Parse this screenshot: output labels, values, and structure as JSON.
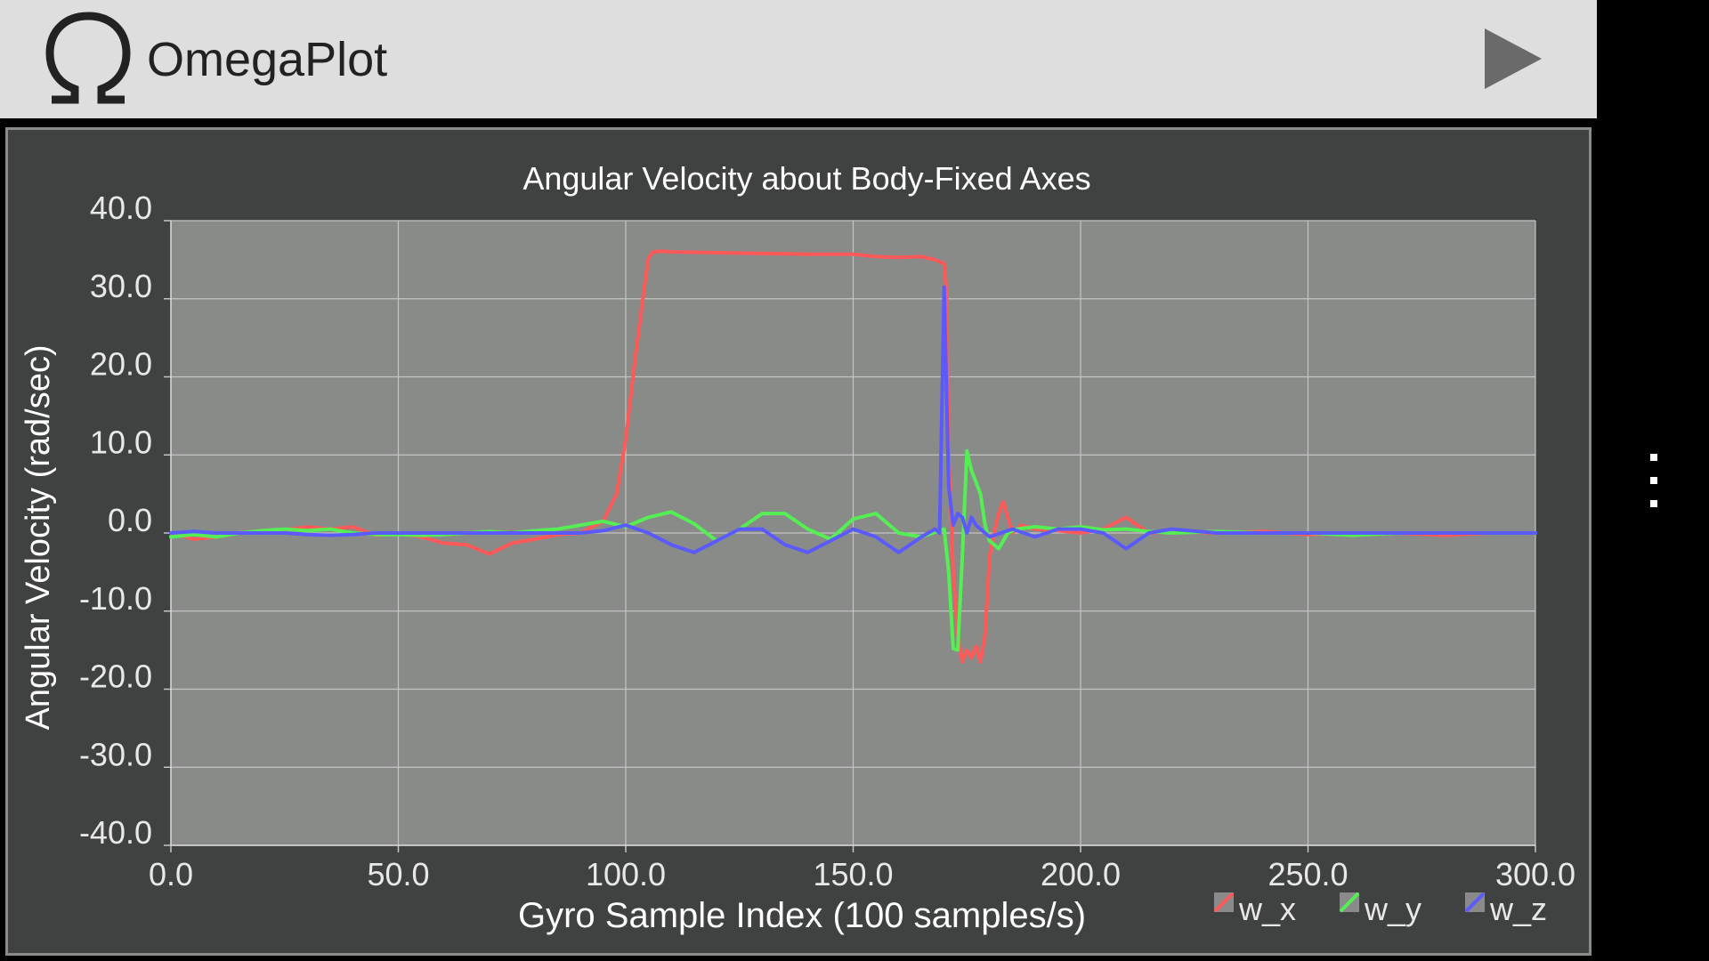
{
  "app": {
    "title": "OmegaPlot",
    "logo_icon": "omega-icon",
    "play_icon": "play-icon",
    "overflow_icon": "overflow-menu-icon"
  },
  "colors": {
    "actionbar_bg": "#dedede",
    "panel_bg": "#404242",
    "plot_bg": "#898b89",
    "grid": "#c4c4c4",
    "w_x": "#ff5a5a",
    "w_y": "#55ee55",
    "w_z": "#5a5aff"
  },
  "chart_data": {
    "type": "line",
    "title": "Angular Velocity about Body-Fixed Axes",
    "xlabel": "Gyro Sample Index (100 samples/s)",
    "ylabel": "Angular Velocity (rad/sec)",
    "xlim": [
      0,
      300
    ],
    "ylim": [
      -40,
      40
    ],
    "x_ticks": [
      "0.0",
      "50.0",
      "100.0",
      "150.0",
      "200.0",
      "250.0",
      "300.0"
    ],
    "y_ticks": [
      "40.0",
      "30.0",
      "20.0",
      "10.0",
      "0.0",
      "-10.0",
      "-20.0",
      "-30.0",
      "-40.0"
    ],
    "grid": true,
    "legend_position": "bottom-right",
    "series": [
      {
        "name": "w_x",
        "x": [
          0,
          5,
          10,
          15,
          20,
          25,
          30,
          35,
          40,
          45,
          50,
          55,
          60,
          65,
          70,
          75,
          80,
          85,
          90,
          95,
          98,
          100,
          102,
          104,
          105,
          106,
          108,
          110,
          120,
          130,
          140,
          150,
          155,
          160,
          165,
          168,
          170,
          170.5,
          171,
          172,
          173,
          174,
          175,
          176,
          177,
          178,
          179,
          180,
          181,
          182,
          183,
          184,
          185,
          187,
          190,
          195,
          200,
          205,
          210,
          215,
          220,
          230,
          240,
          250,
          260,
          270,
          280,
          290,
          300
        ],
        "y": [
          0,
          -0.8,
          -0.5,
          0,
          0.2,
          0.4,
          0.8,
          0.5,
          0.8,
          -0.3,
          0,
          -0.5,
          -1.3,
          -1.5,
          -2.7,
          -1.3,
          -0.8,
          -0.2,
          0,
          1.5,
          5,
          12,
          22,
          31,
          35.2,
          36,
          36.1,
          36,
          35.9,
          35.8,
          35.7,
          35.7,
          35.4,
          35.3,
          35.4,
          35,
          34.5,
          31,
          10,
          -5,
          -13,
          -16.5,
          -15,
          -16,
          -14.5,
          -16.5,
          -13,
          -3,
          0,
          2.5,
          4,
          2,
          0,
          1,
          0.5,
          0.3,
          0,
          0.5,
          2,
          0,
          0.2,
          0,
          0.2,
          -0.2,
          0,
          0,
          -0.3,
          0,
          0
        ]
      },
      {
        "name": "w_y",
        "x": [
          0,
          5,
          10,
          15,
          20,
          25,
          30,
          35,
          40,
          45,
          50,
          55,
          60,
          65,
          70,
          75,
          80,
          85,
          90,
          95,
          100,
          105,
          110,
          115,
          120,
          125,
          130,
          135,
          140,
          145,
          150,
          155,
          160,
          165,
          170,
          171,
          172,
          173,
          174,
          175,
          176,
          177,
          178,
          179,
          180,
          182,
          184,
          186,
          190,
          195,
          200,
          205,
          210,
          215,
          220,
          230,
          240,
          250,
          260,
          270,
          280,
          290,
          300
        ],
        "y": [
          -0.5,
          -0.2,
          -0.5,
          0,
          0.3,
          0.5,
          0.3,
          0.5,
          0,
          -0.2,
          -0.2,
          -0.3,
          -0.2,
          0,
          0.2,
          0,
          0.3,
          0.5,
          1,
          1.5,
          0.8,
          2,
          2.7,
          1.2,
          -1,
          0.5,
          2.5,
          2.5,
          0.5,
          -0.8,
          1.8,
          2.5,
          0,
          -0.5,
          0.5,
          -5,
          -14.8,
          -15,
          -3,
          10.5,
          8,
          6.5,
          5,
          1,
          -1,
          -2,
          0,
          0.5,
          0.8,
          0.5,
          0.8,
          0.4,
          0.5,
          0.2,
          0,
          0.2,
          0,
          0,
          -0.3,
          0,
          0,
          0,
          0
        ]
      },
      {
        "name": "w_z",
        "x": [
          0,
          5,
          10,
          15,
          20,
          25,
          30,
          35,
          40,
          45,
          50,
          55,
          60,
          65,
          70,
          75,
          80,
          85,
          90,
          95,
          100,
          105,
          110,
          115,
          120,
          125,
          130,
          135,
          140,
          145,
          150,
          155,
          160,
          165,
          168,
          169,
          170,
          171,
          172,
          173,
          174,
          175,
          176,
          177,
          178,
          180,
          185,
          190,
          195,
          200,
          205,
          210,
          215,
          220,
          230,
          240,
          250,
          260,
          270,
          280,
          290,
          300
        ],
        "y": [
          0,
          0.2,
          0,
          0,
          0,
          0,
          -0.2,
          -0.3,
          -0.2,
          0,
          0,
          0,
          0,
          0,
          0,
          0,
          0,
          0,
          0,
          0.3,
          1,
          0,
          -1.5,
          -2.5,
          -1,
          0.5,
          0.5,
          -1.5,
          -2.5,
          -1,
          0.5,
          -0.5,
          -2.5,
          -0.5,
          0.5,
          0,
          31.5,
          6,
          1,
          2.5,
          2,
          0,
          2,
          1,
          0.5,
          -0.5,
          0.5,
          -0.5,
          0.5,
          0.5,
          0,
          -2,
          0,
          0.5,
          0,
          0,
          0,
          0,
          0,
          0,
          0,
          0
        ]
      }
    ]
  }
}
